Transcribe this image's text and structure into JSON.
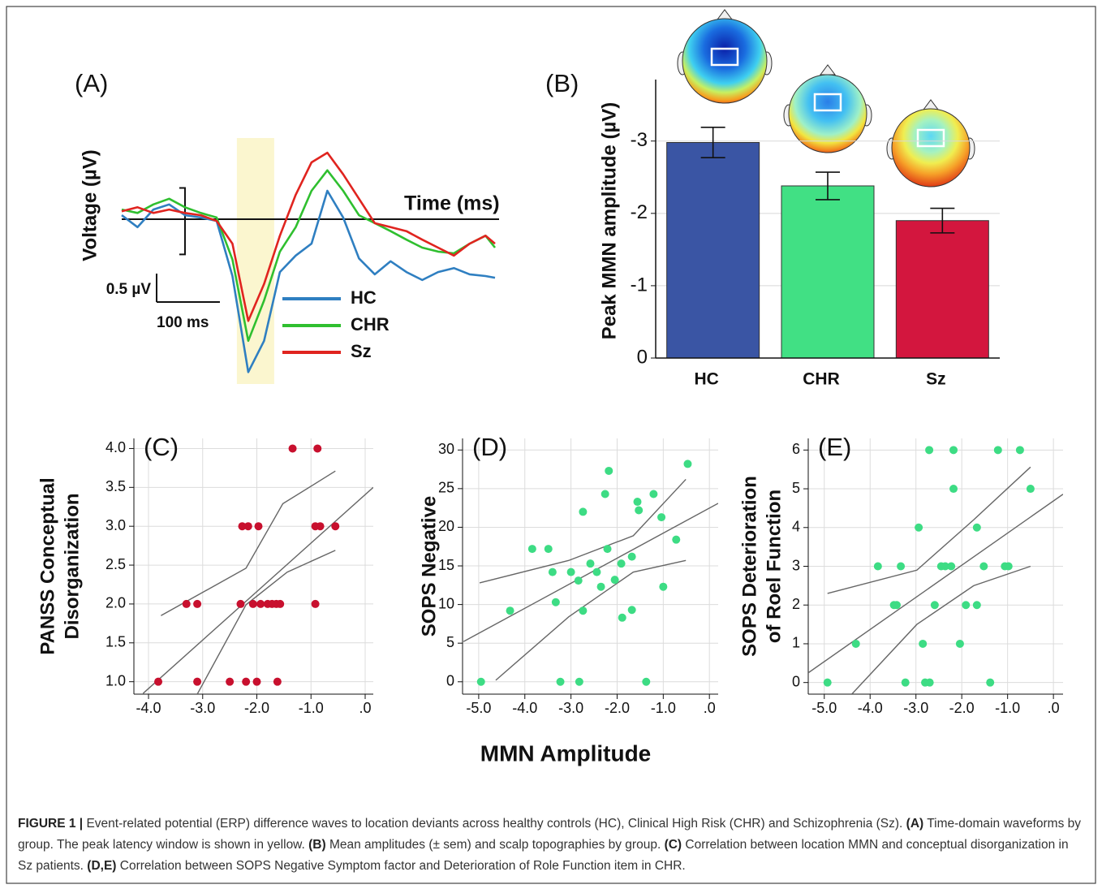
{
  "chart_data": [
    {
      "type": "line",
      "panel": "(A)",
      "xlabel": "Time (ms)",
      "ylabel": "Voltage (µV)",
      "x": [
        -100,
        -75,
        -50,
        -25,
        0,
        25,
        50,
        75,
        100,
        125,
        150,
        175,
        200,
        225,
        250,
        275,
        300,
        325,
        350,
        375,
        400,
        425,
        450,
        475,
        490
      ],
      "xlim": [
        -100,
        490
      ],
      "ylim": [
        -2.9,
        1.5
      ],
      "highlight": [
        82,
        141
      ],
      "highlight_color": "#fbf6cf",
      "scale_bar": {
        "y": {
          "value": 0.5,
          "label": "0.5 µV"
        },
        "x": {
          "value": 100,
          "label": "100 ms"
        }
      },
      "series": [
        {
          "name": "HC",
          "color": "#2f7fc1",
          "values": [
            0.07,
            -0.14,
            0.17,
            0.26,
            0.07,
            0.03,
            -0.03,
            -1.0,
            -2.69,
            -2.14,
            -0.93,
            -0.64,
            -0.43,
            0.5,
            0.03,
            -0.69,
            -0.97,
            -0.74,
            -0.93,
            -1.07,
            -0.93,
            -0.86,
            -0.97,
            -1.0,
            -1.03
          ]
        },
        {
          "name": "CHR",
          "color": "#2fbf2f",
          "values": [
            0.17,
            0.11,
            0.26,
            0.36,
            0.21,
            0.11,
            0.03,
            -0.71,
            -2.14,
            -1.43,
            -0.57,
            -0.14,
            0.5,
            0.86,
            0.5,
            0.07,
            -0.07,
            -0.21,
            -0.36,
            -0.5,
            -0.57,
            -0.6,
            -0.43,
            -0.29,
            -0.5
          ]
        },
        {
          "name": "Sz",
          "color": "#e0241f",
          "values": [
            0.14,
            0.21,
            0.11,
            0.17,
            0.11,
            0.07,
            -0.03,
            -0.43,
            -1.79,
            -1.14,
            -0.29,
            0.43,
            1.0,
            1.17,
            0.79,
            0.36,
            -0.07,
            -0.14,
            -0.21,
            -0.36,
            -0.5,
            -0.64,
            -0.43,
            -0.29,
            -0.43
          ]
        }
      ]
    },
    {
      "type": "bar",
      "panel": "(B)",
      "ylabel": "Peak MMN amplitude (µV)",
      "categories": [
        "HC",
        "CHR",
        "Sz"
      ],
      "values": [
        -2.98,
        -2.38,
        -1.9
      ],
      "errors": [
        0.21,
        0.19,
        0.17
      ],
      "colors": [
        "#3a55a4",
        "#41e084",
        "#d3163e"
      ],
      "ylim": [
        0,
        -3.85
      ],
      "yticks": [
        0,
        -1,
        -2,
        -3
      ],
      "grid": true
    },
    {
      "type": "scatter",
      "panel": "(C)",
      "ylabel": [
        "PANSS Conceptual",
        "Disorganization"
      ],
      "color": "#c8102e",
      "xlim": [
        -4.27,
        0.15
      ],
      "ylim": [
        0.84,
        4.13
      ],
      "xticks": [
        {
          "value": -4,
          "label": "-4.0"
        },
        {
          "value": -3,
          "label": "-3.0"
        },
        {
          "value": -2,
          "label": "-2.0"
        },
        {
          "value": -1,
          "label": "-1.0"
        },
        {
          "value": 0,
          "label": ".0"
        }
      ],
      "yticks": [
        {
          "value": 1,
          "label": "1.0"
        },
        1.5,
        {
          "value": 2,
          "label": "2.0"
        },
        2.5,
        {
          "value": 3,
          "label": "3.0"
        },
        3.5,
        {
          "value": 4,
          "label": "4.0"
        }
      ],
      "x": [
        -3.82,
        -3.1,
        -2.5,
        -2.2,
        -2.0,
        -1.62,
        -3.3,
        -3.1,
        -2.3,
        -2.07,
        -1.93,
        -1.8,
        -1.72,
        -1.64,
        -1.57,
        -0.92,
        -2.27,
        -2.16,
        -1.97,
        -0.92,
        -0.83,
        -0.55,
        -1.34,
        -0.88
      ],
      "y": [
        1,
        1,
        1,
        1,
        1,
        1,
        2,
        2,
        2,
        2,
        2,
        2,
        2,
        2,
        2,
        2,
        3,
        3,
        3,
        3,
        3,
        3,
        4,
        4
      ],
      "fit_line": {
        "x": [
          -4.1,
          0.15
        ],
        "y": [
          0.85,
          3.5
        ]
      },
      "ci_upper": {
        "x": [
          -3.77,
          -2.2,
          -1.52,
          -0.55
        ],
        "y": [
          1.85,
          2.46,
          3.29,
          3.71
        ]
      },
      "ci_lower": {
        "x": [
          -3.1,
          -2.2,
          -1.44,
          -0.55
        ],
        "y": [
          0.84,
          1.99,
          2.41,
          2.69
        ]
      },
      "grid": true
    },
    {
      "type": "scatter",
      "panel": "(D)",
      "ylabel": [
        "SOPS Negative"
      ],
      "color": "#3ddc84",
      "xlim": [
        -5.35,
        0.19
      ],
      "ylim": [
        -1.6,
        31.5
      ],
      "xticks": [
        {
          "value": -5,
          "label": "-5.0"
        },
        {
          "value": -4,
          "label": "-4.0"
        },
        {
          "value": -3,
          "label": "-3.0"
        },
        {
          "value": -2,
          "label": "-2.0"
        },
        {
          "value": -1,
          "label": "-1.0"
        },
        {
          "value": 0,
          "label": ".0"
        }
      ],
      "yticks": [
        0,
        5,
        10,
        15,
        20,
        25,
        30
      ],
      "x": [
        -4.95,
        -4.32,
        -3.84,
        -3.49,
        -3.4,
        -3.33,
        -3.23,
        -2.82,
        -3.0,
        -2.84,
        -2.74,
        -2.74,
        -2.58,
        -2.44,
        -2.35,
        -2.26,
        -2.21,
        -2.18,
        -2.05,
        -1.91,
        -1.89,
        -1.68,
        -1.68,
        -1.56,
        -1.53,
        -1.21,
        -1.37,
        -1.04,
        -1.0,
        -0.72,
        -0.47
      ],
      "y": [
        0,
        9.2,
        17.2,
        17.2,
        14.2,
        10.3,
        0,
        0,
        14.2,
        13.1,
        22,
        9.2,
        15.3,
        14.2,
        12.3,
        24.3,
        17.2,
        27.3,
        13.2,
        15.3,
        8.3,
        16.2,
        9.3,
        23.3,
        22.2,
        24.3,
        0,
        21.3,
        12.3,
        18.4,
        28.2
      ],
      "fit_line": {
        "x": [
          -5.33,
          0.19
        ],
        "y": [
          5.2,
          23.1
        ]
      },
      "ci_upper": {
        "x": [
          -4.98,
          -3.05,
          -1.65,
          -0.51
        ],
        "y": [
          12.8,
          15.7,
          18.9,
          26.2
        ]
      },
      "ci_lower": {
        "x": [
          -4.63,
          -3.05,
          -1.65,
          -0.51
        ],
        "y": [
          0.2,
          8.4,
          14.2,
          15.7
        ]
      },
      "grid": true
    },
    {
      "type": "scatter",
      "panel": "(E)",
      "ylabel": [
        "SOPS Deterioration",
        "of Roel Function"
      ],
      "color": "#3ddc84",
      "xlim": [
        -5.35,
        0.21
      ],
      "ylim": [
        -0.3,
        6.3
      ],
      "xticks": [
        {
          "value": -5,
          "label": "-5.0"
        },
        {
          "value": -4,
          "label": "-4.0"
        },
        {
          "value": -3,
          "label": "-3.0"
        },
        {
          "value": -2,
          "label": "-2.0"
        },
        {
          "value": -1,
          "label": "-1.0"
        },
        {
          "value": 0,
          "label": ".0"
        }
      ],
      "yticks": [
        0,
        1,
        2,
        3,
        4,
        5,
        6
      ],
      "x": [
        -4.93,
        -4.31,
        -3.83,
        -3.33,
        -3.48,
        -3.42,
        -3.23,
        -2.94,
        -2.85,
        -2.8,
        -2.7,
        -2.71,
        -2.59,
        -2.45,
        -2.36,
        -2.23,
        -2.18,
        -2.18,
        -2.04,
        -1.91,
        -1.67,
        -1.67,
        -1.52,
        -1.38,
        -1.21,
        -1.06,
        -0.98,
        -0.73,
        -0.5
      ],
      "y": [
        0,
        1,
        3,
        3,
        2,
        2,
        0,
        4,
        1,
        0,
        0,
        6,
        2,
        3,
        3,
        3,
        6,
        5,
        1,
        2,
        2,
        4,
        3,
        0,
        6,
        3,
        3,
        6,
        5
      ],
      "fit_line": {
        "x": [
          -5.35,
          0.21
        ],
        "y": [
          0.25,
          4.86
        ]
      },
      "ci_upper": {
        "x": [
          -4.93,
          -2.98,
          -1.74,
          -0.5
        ],
        "y": [
          2.3,
          2.9,
          4.2,
          5.56
        ]
      },
      "ci_lower": {
        "x": [
          -4.4,
          -2.98,
          -1.74,
          -0.5
        ],
        "y": [
          -0.3,
          1.5,
          2.5,
          3.0
        ]
      },
      "grid": true
    }
  ],
  "shared_xlabel": "MMN Amplitude",
  "caption": [
    {
      "text": "FIGURE 1 |",
      "bold": true
    },
    {
      "text": " Event-related potential (ERP) difference waves to location deviants across healthy controls (HC), Clinical High Risk (CHR) and Schizophrenia (Sz). ",
      "bold": false
    },
    {
      "text": "(A)",
      "bold": true
    },
    {
      "text": " Time-domain waveforms by group. The peak latency window is shown in yellow. ",
      "bold": false
    },
    {
      "text": "(B)",
      "bold": true
    },
    {
      "text": " Mean amplitudes (± sem) and scalp topographies by group. ",
      "bold": false
    },
    {
      "text": "(C)",
      "bold": true
    },
    {
      "text": " Correlation between location MMN and conceptual disorganization in Sz patients. ",
      "bold": false
    },
    {
      "text": "(D,E)",
      "bold": true
    },
    {
      "text": " Correlation between SOPS Negative Symptom factor and Deterioration of Role Function item in CHR.",
      "bold": false
    }
  ]
}
